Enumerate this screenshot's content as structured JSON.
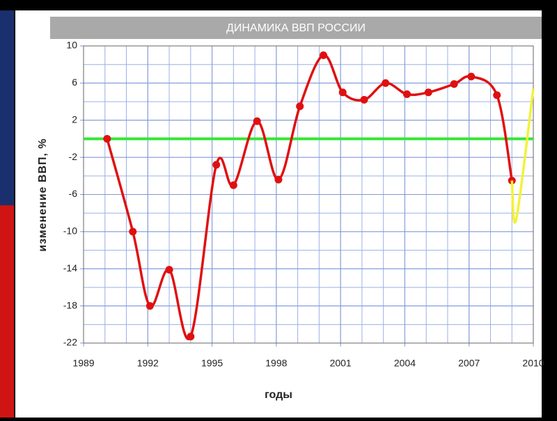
{
  "chart_data": {
    "type": "line",
    "title": "ДИНАМИКА ВВП РОССИИ",
    "x_label": "годы",
    "y_label": "изменение ВВП, %",
    "xlim": [
      1989,
      2010
    ],
    "xticks": [
      1989,
      1992,
      1995,
      1998,
      2001,
      2004,
      2007,
      2010
    ],
    "ylim": [
      -22,
      10
    ],
    "yticks": [
      10,
      6,
      2,
      -2,
      -6,
      -10,
      -14,
      -18,
      -22
    ],
    "grid": true,
    "x_grid_step": 1,
    "y_grid_step": 2,
    "reference_line": {
      "value": 0,
      "color": "#33e633"
    },
    "series": [
      {
        "color": "#e01010",
        "markers": true,
        "x": [
          1990.1,
          1991.3,
          1992.1,
          1993.0,
          1994.0,
          1995.2,
          1996.0,
          1997.1,
          1998.1,
          1999.1,
          2000.2,
          2001.1,
          2002.1,
          2003.1,
          2004.1,
          2005.1,
          2006.3,
          2007.1,
          2008.3,
          2009.0
        ],
        "values": [
          0,
          -10,
          -18,
          -14.1,
          -21.3,
          -2.8,
          -5.0,
          1.9,
          -4.4,
          3.5,
          9.0,
          5.0,
          4.2,
          6.0,
          4.8,
          5.0,
          5.9,
          6.7,
          4.7,
          -4.5
        ]
      },
      {
        "color": "#f2f23a",
        "markers": false,
        "x": [
          2009.0,
          2009.2,
          2010.0
        ],
        "values": [
          -4.5,
          -8.7,
          5.4
        ]
      }
    ]
  }
}
